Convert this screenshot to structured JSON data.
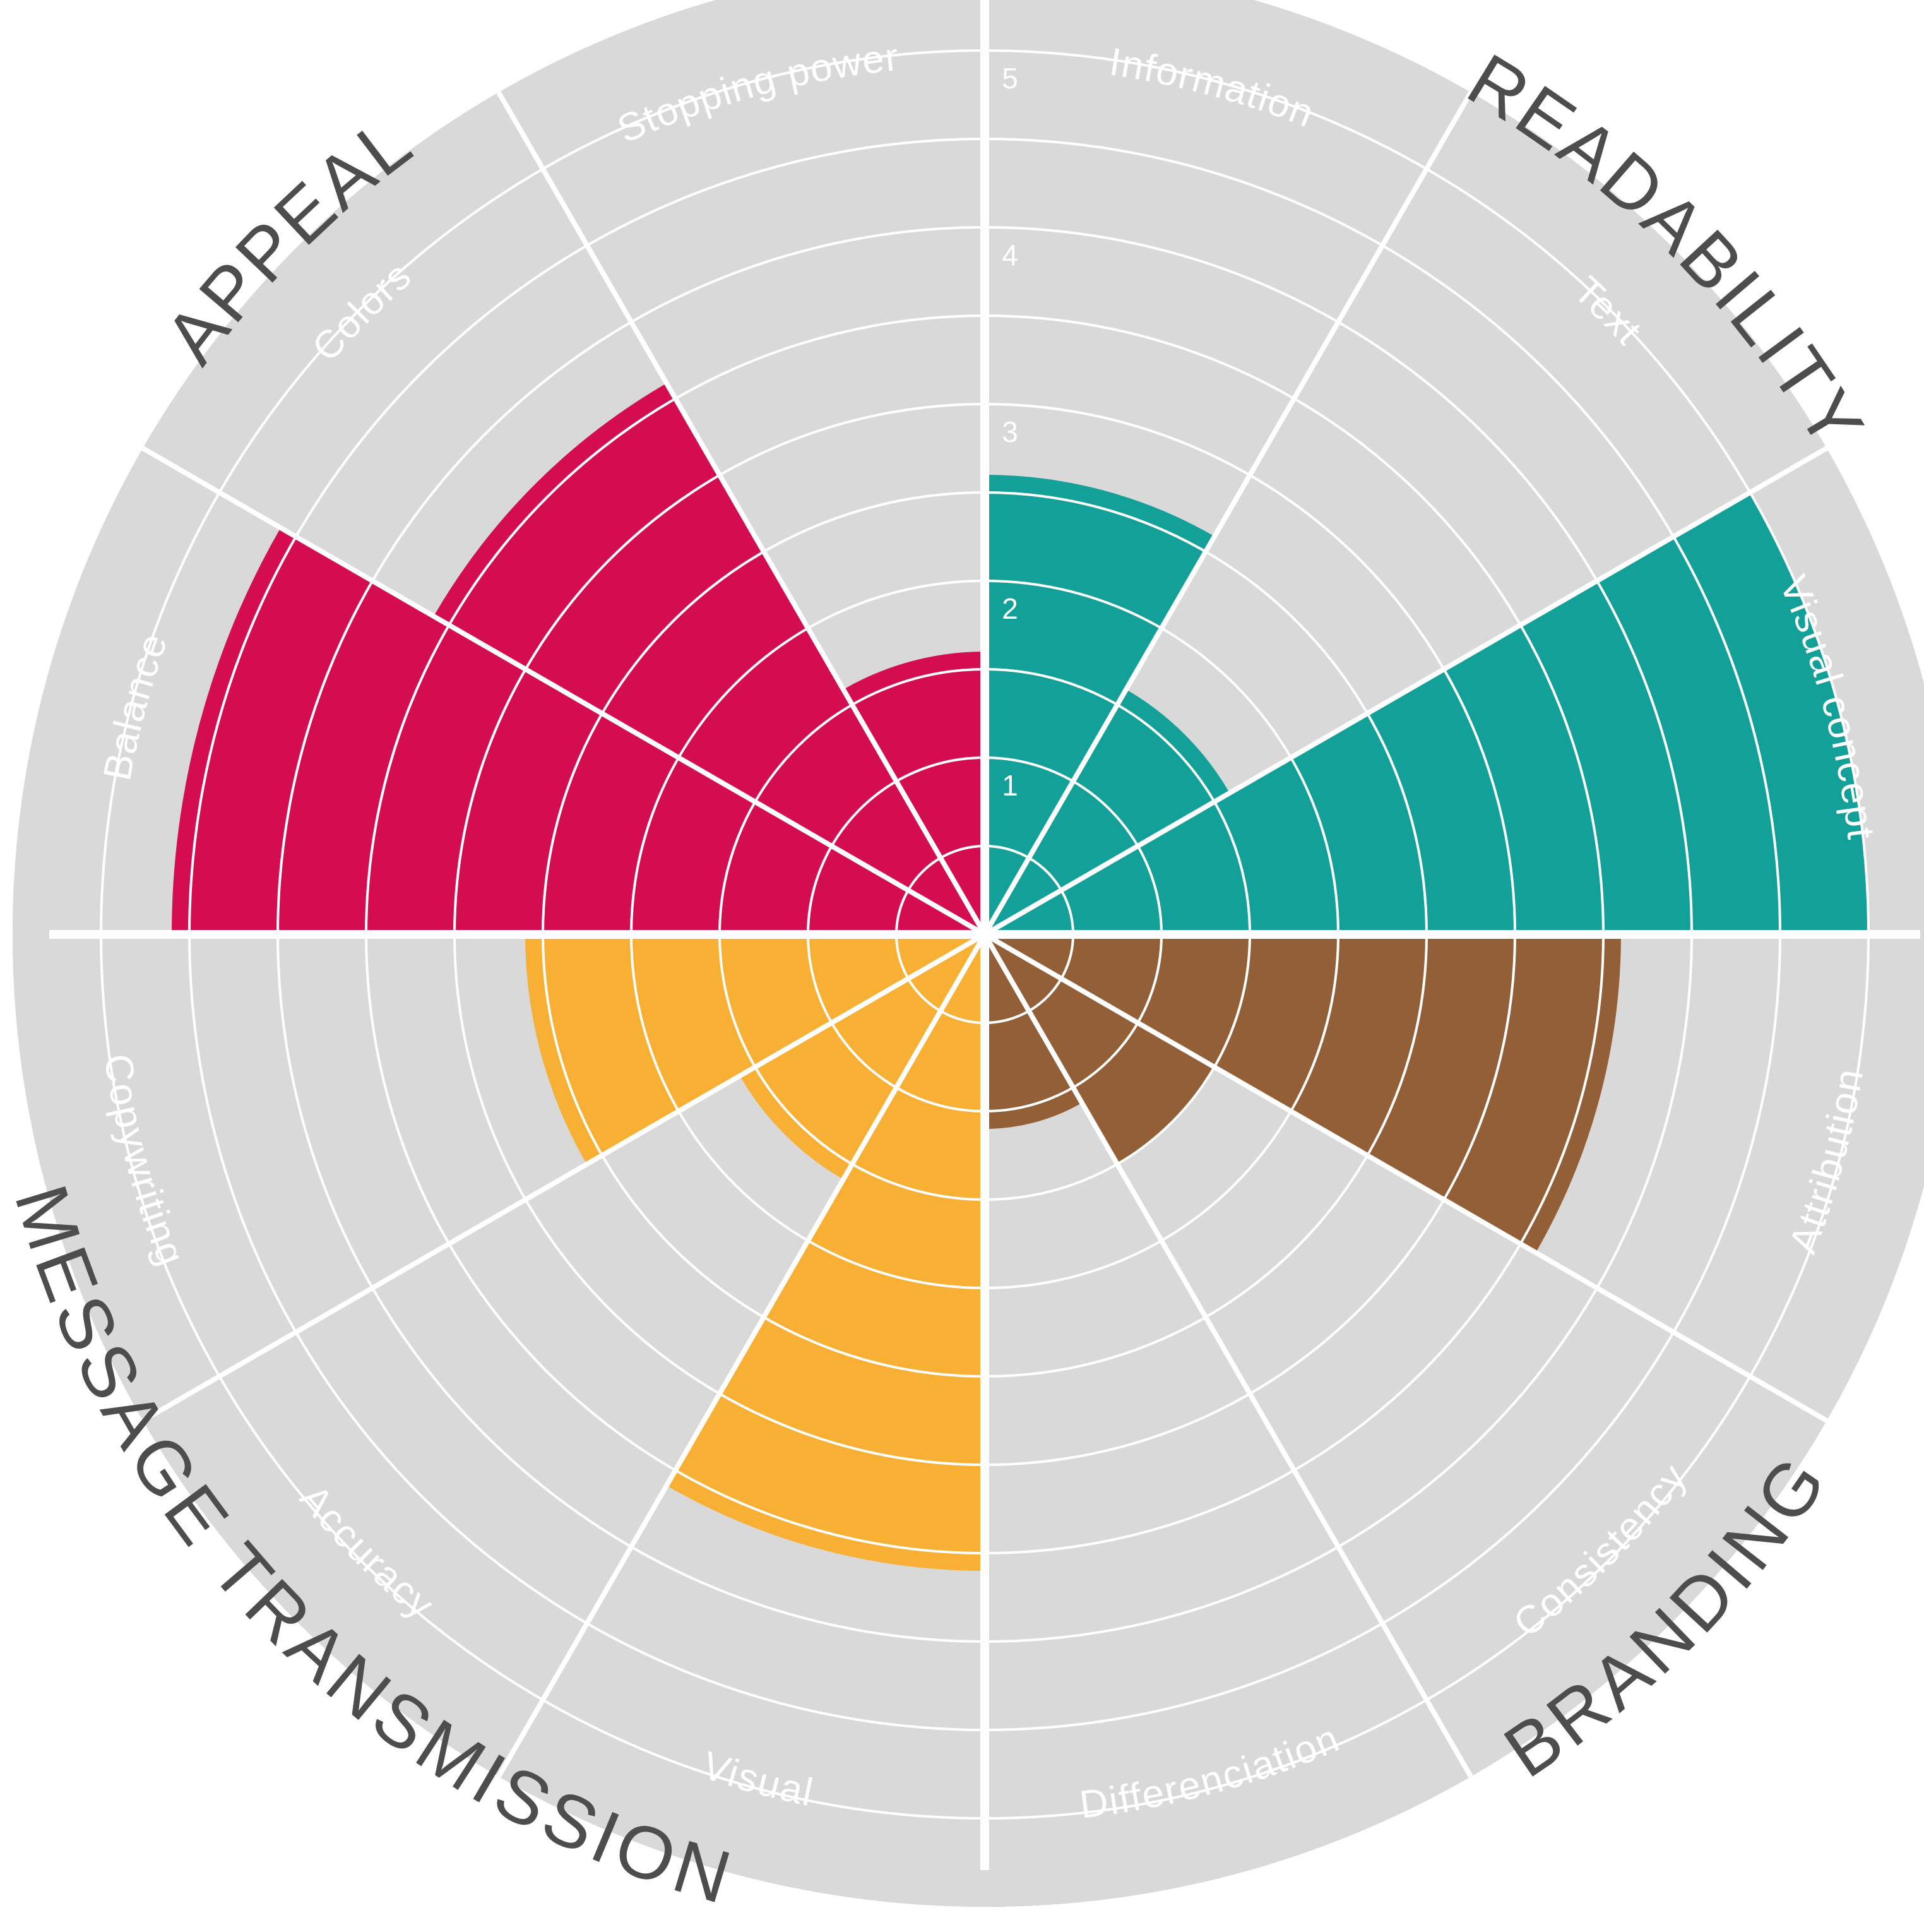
{
  "chart_data": {
    "type": "polar-bar",
    "title": "",
    "r_ticks": [
      "1",
      "2",
      "3",
      "4",
      "5"
    ],
    "rmax": 5.5,
    "grid": true,
    "background_color": "#d9d9d9",
    "categories": [
      {
        "name": "READABILITY",
        "ring_color": "#75c7c1",
        "bar_color": "#12a098",
        "items": [
          {
            "label": "Information",
            "value": 2.6
          },
          {
            "label": "Text",
            "value": 1.6
          },
          {
            "label": "Visual concept",
            "value": 5.0
          }
        ]
      },
      {
        "name": "BRANDING",
        "ring_color": "#925f37",
        "bar_color": "#925f37",
        "items": [
          {
            "label": "Attribution",
            "value": 3.6
          },
          {
            "label": "Consistency",
            "value": 1.5
          },
          {
            "label": "Differenciation",
            "value": 1.1
          }
        ]
      },
      {
        "name": "MESSAGE TRANSMISSION",
        "ring_color": "#f9c462",
        "bar_color": "#f7b034",
        "items": [
          {
            "label": "Visual",
            "value": 3.6
          },
          {
            "label": "Accuracy",
            "value": 1.6
          },
          {
            "label": "Copywriting",
            "value": 2.6
          }
        ]
      },
      {
        "name": "APPEAL",
        "ring_color": "#e56d96",
        "bar_color": "#d40c50",
        "items": [
          {
            "label": "Balance",
            "value": 4.6
          },
          {
            "label": "Colors",
            "value": 3.6
          },
          {
            "label": "Stopping power",
            "value": 1.6
          }
        ]
      }
    ]
  }
}
